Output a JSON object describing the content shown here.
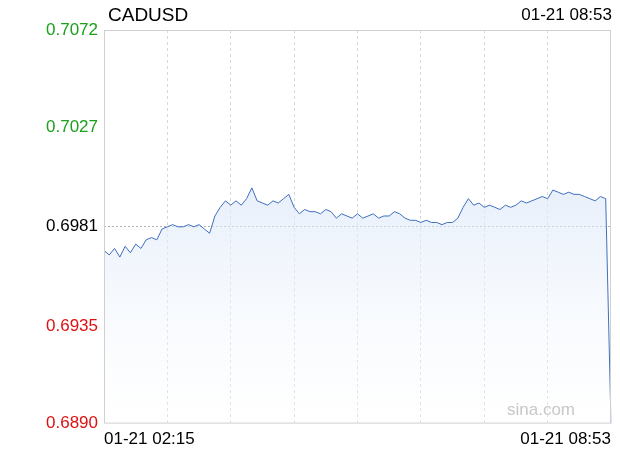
{
  "chart_data": {
    "type": "line",
    "title": "CADUSD",
    "subtitle": "01-21 08:53",
    "categories": [
      "01-21 02:15",
      null,
      null,
      null,
      null,
      null,
      null,
      null,
      null,
      null,
      null,
      null,
      null,
      null,
      null,
      null,
      null,
      null,
      null,
      null,
      null,
      null,
      null,
      null,
      null,
      null,
      null,
      null,
      null,
      null,
      null,
      null,
      null,
      null,
      null,
      null,
      null,
      null,
      null,
      null,
      null,
      null,
      null,
      null,
      null,
      null,
      null,
      null,
      null,
      null,
      null,
      null,
      null,
      null,
      null,
      null,
      null,
      null,
      null,
      null,
      null,
      null,
      null,
      null,
      null,
      null,
      null,
      null,
      null,
      null,
      null,
      null,
      null,
      null,
      null,
      null,
      null,
      null,
      null,
      null,
      null,
      null,
      null,
      null,
      null,
      null,
      null,
      null,
      null,
      null,
      null,
      null,
      null,
      null,
      null,
      null,
      "01-21 08:53"
    ],
    "values": [
      0.697,
      0.6968,
      0.6971,
      0.6967,
      0.6972,
      0.6969,
      0.6973,
      0.6971,
      0.6975,
      0.6976,
      0.6975,
      0.698,
      0.6981,
      0.6982,
      0.6981,
      0.6981,
      0.6982,
      0.6981,
      0.6982,
      0.698,
      0.6978,
      0.6986,
      0.699,
      0.6993,
      0.6991,
      0.6993,
      0.6991,
      0.6994,
      0.6999,
      0.6993,
      0.6992,
      0.6991,
      0.6993,
      0.6992,
      0.6994,
      0.6996,
      0.699,
      0.6987,
      0.6989,
      0.6988,
      0.6988,
      0.6987,
      0.6989,
      0.6988,
      0.6985,
      0.6987,
      0.6986,
      0.6985,
      0.6987,
      0.6985,
      0.6986,
      0.6987,
      0.6985,
      0.6986,
      0.6986,
      0.6988,
      0.6987,
      0.6985,
      0.6984,
      0.6984,
      0.6983,
      0.6984,
      0.6983,
      0.6983,
      0.6982,
      0.6983,
      0.6983,
      0.6985,
      0.699,
      0.6994,
      0.6991,
      0.6992,
      0.699,
      0.6991,
      0.699,
      0.6989,
      0.6991,
      0.699,
      0.6991,
      0.6993,
      0.6992,
      0.6993,
      0.6994,
      0.6995,
      0.6994,
      0.6998,
      0.6997,
      0.6996,
      0.6997,
      0.6996,
      0.6996,
      0.6995,
      0.6994,
      0.6993,
      0.6995,
      0.6994,
      0.689
    ],
    "color": "#3f6fbf",
    "ylim": [
      0.689,
      0.7072
    ],
    "yticks": [
      {
        "value": 0.689,
        "label": "0.6890"
      },
      0.6935,
      0.6981,
      0.7027,
      0.7072
    ],
    "grid": true,
    "annotations": [
      "sina.com"
    ]
  }
}
